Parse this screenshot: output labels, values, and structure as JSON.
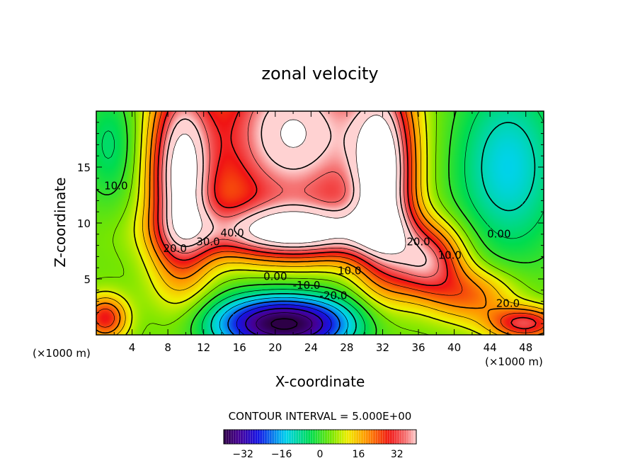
{
  "chart_data": {
    "type": "heatmap",
    "title": "zonal velocity",
    "xlabel": "X-coordinate",
    "ylabel": "Z-coordinate",
    "x_unit_left": "(×1000 m)",
    "x_unit_right": "(×1000 m)",
    "xlim": [
      0,
      50
    ],
    "ylim": [
      0,
      20
    ],
    "x_ticks": [
      4,
      8,
      12,
      16,
      20,
      24,
      28,
      32,
      36,
      40,
      44,
      48
    ],
    "y_ticks": [
      5,
      10,
      15
    ],
    "contour_interval_text": "CONTOUR INTERVAL = 5.000E+00",
    "colorbar": {
      "min": -40,
      "max": 40,
      "ticks": [
        -32,
        -16,
        0,
        16,
        32
      ]
    },
    "contour_labels": [
      {
        "text": "10.0",
        "x": 2.2,
        "z": 13.0
      },
      {
        "text": "40.0",
        "x": 15.2,
        "z": 8.8
      },
      {
        "text": "30.0",
        "x": 12.5,
        "z": 8.0
      },
      {
        "text": "20.0",
        "x": 8.8,
        "z": 7.4
      },
      {
        "text": "0.00",
        "x": 20.0,
        "z": 4.9
      },
      {
        "text": "10.0",
        "x": 28.3,
        "z": 5.4
      },
      {
        "text": "-10.0",
        "x": 23.5,
        "z": 4.1
      },
      {
        "text": "-20.0",
        "x": 26.5,
        "z": 3.2
      },
      {
        "text": "20.0",
        "x": 36.0,
        "z": 8.0
      },
      {
        "text": "10.0",
        "x": 39.5,
        "z": 6.8
      },
      {
        "text": "0.00",
        "x": 45.0,
        "z": 8.7
      },
      {
        "text": "20.0",
        "x": 46.0,
        "z": 2.5
      }
    ],
    "field_features": [
      {
        "value": 42,
        "x": 22,
        "z": 18,
        "sx": 9,
        "sz": 8
      },
      {
        "value": 42,
        "x": 9.5,
        "z": 14,
        "sx": 3.5,
        "sz": 9
      },
      {
        "value": 42,
        "x": 32,
        "z": 14,
        "sx": 3.5,
        "sz": 9
      },
      {
        "value": 38,
        "x": 22,
        "z": 9.2,
        "sx": 11,
        "sz": 2.4
      },
      {
        "value": 30,
        "x": 37,
        "z": 6.5,
        "sx": 4,
        "sz": 3
      },
      {
        "value": -46,
        "x": 21,
        "z": 1.0,
        "sx": 8,
        "sz": 2.6
      },
      {
        "value": -18,
        "x": 46,
        "z": 15,
        "sx": 6,
        "sz": 8
      },
      {
        "value": 25,
        "x": 1,
        "z": 1.5,
        "sx": 2.5,
        "sz": 2
      },
      {
        "value": 28,
        "x": 48,
        "z": 1.0,
        "sx": 4,
        "sz": 1.5
      },
      {
        "value": 18,
        "x": 42,
        "z": 3.5,
        "sx": 5,
        "sz": 2.5
      },
      {
        "value": -10,
        "x": 1.5,
        "z": 17,
        "sx": 3,
        "sz": 5
      }
    ]
  }
}
